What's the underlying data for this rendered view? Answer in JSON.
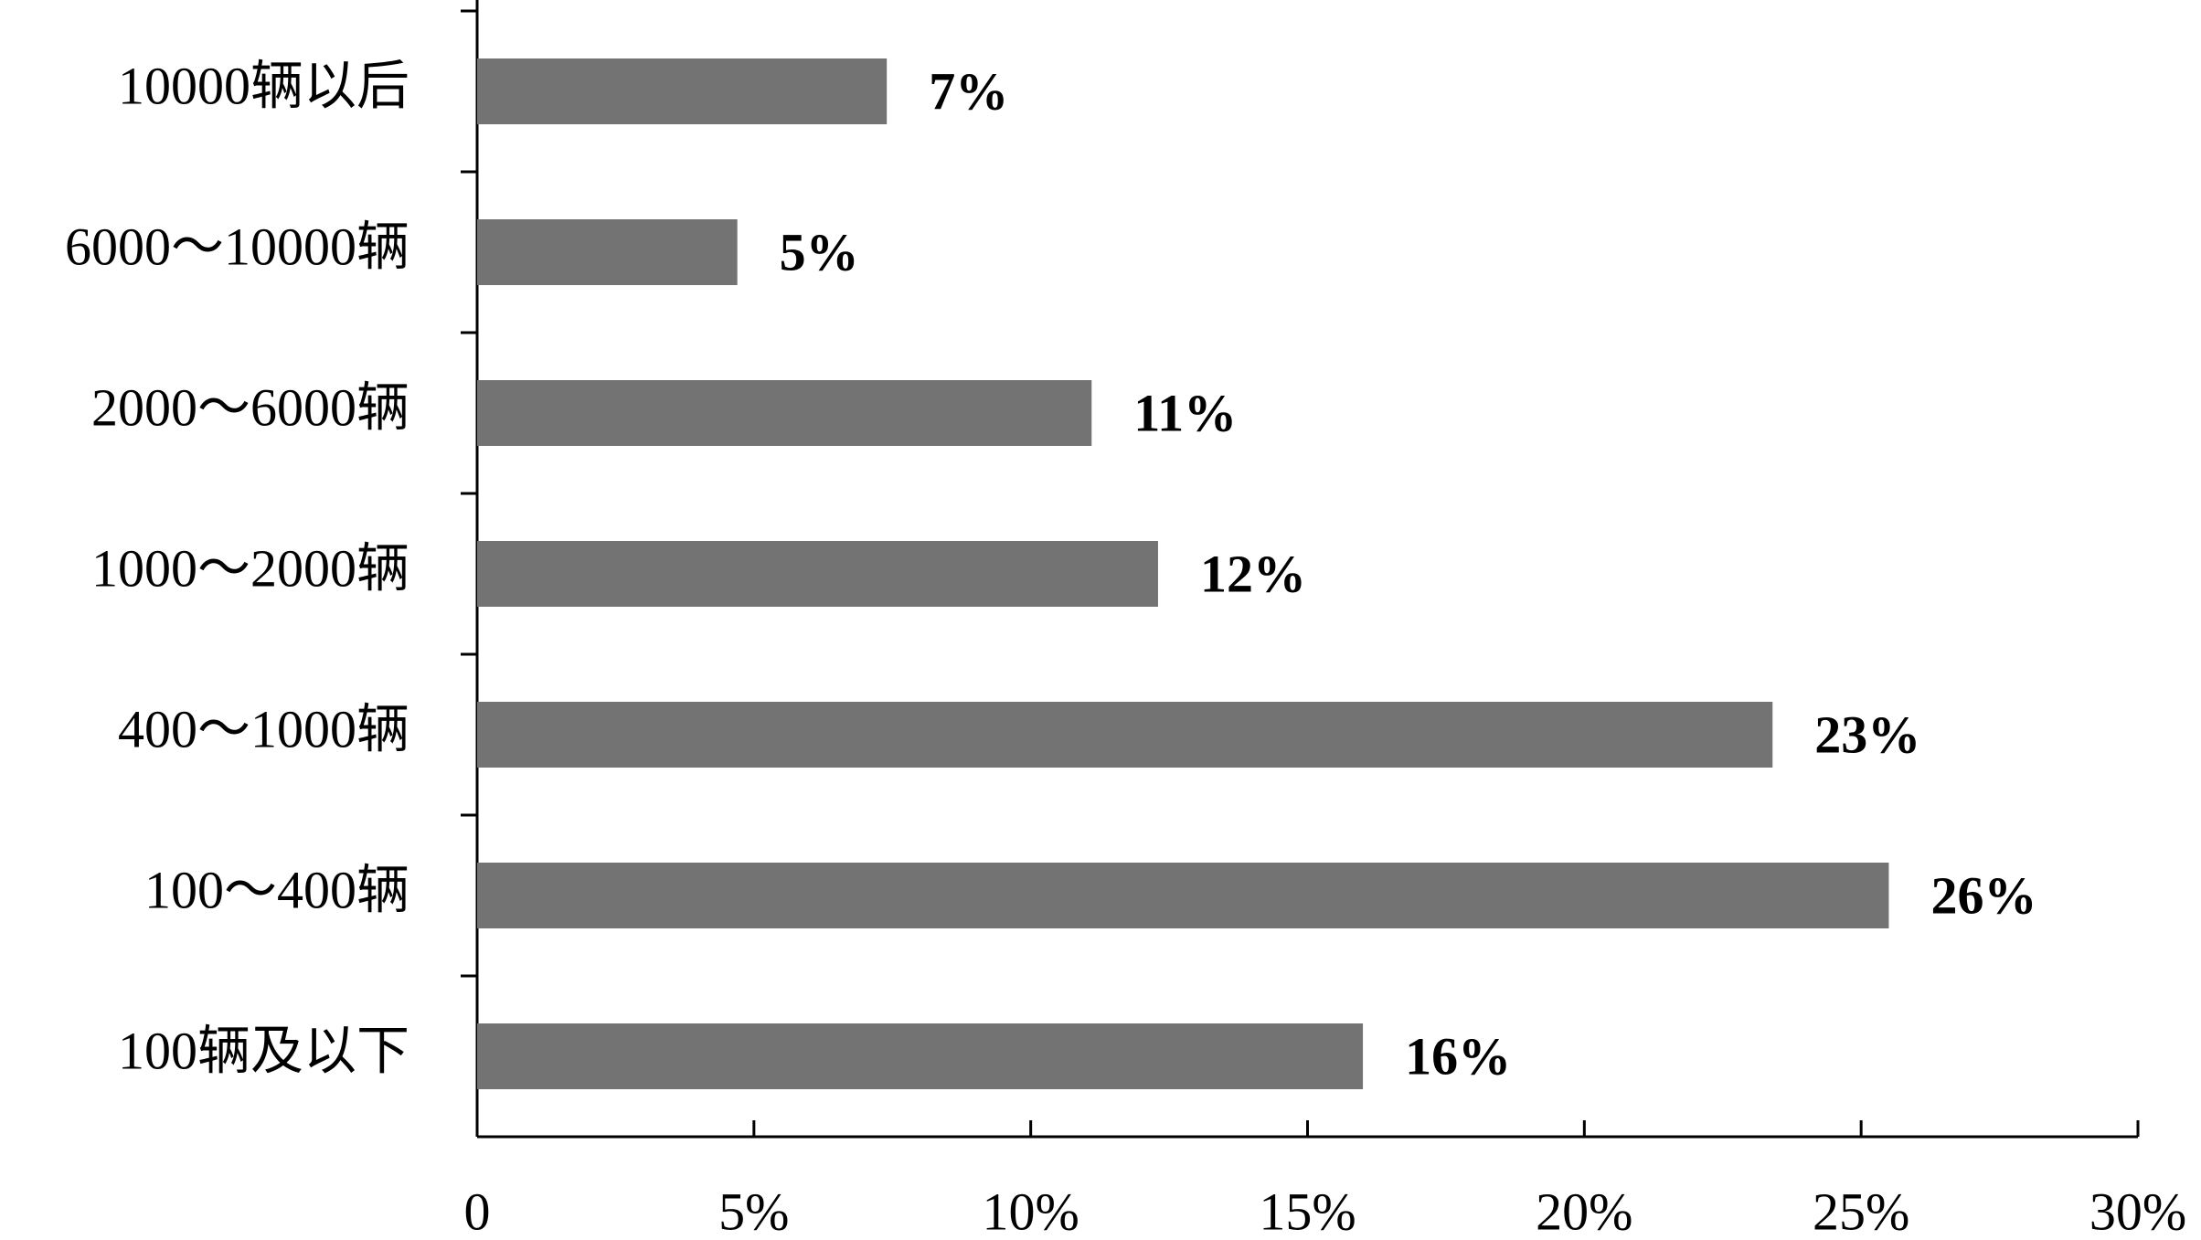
{
  "chart_data": {
    "type": "hbar",
    "categories": [
      "10000辆以后",
      "6000～10000辆",
      "2000～6000辆",
      "1000～2000辆",
      "400～1000辆",
      "100～400辆",
      "100辆及以下"
    ],
    "values": [
      7.4,
      4.7,
      11.1,
      12.3,
      23.4,
      25.5,
      16
    ],
    "value_labels": [
      "7%",
      "5%",
      "11%",
      "12%",
      "23%",
      "26%",
      "16%"
    ],
    "color": "#737373",
    "xlim": [
      0,
      30
    ],
    "xticks": [
      0,
      {
        "value": 5,
        "label": "5%"
      },
      {
        "value": 10,
        "label": "10%"
      },
      {
        "value": 15,
        "label": "15%"
      },
      {
        "value": 20,
        "label": "20%"
      },
      {
        "value": 25,
        "label": "25%"
      },
      {
        "value": 30,
        "label": "30%"
      }
    ]
  }
}
